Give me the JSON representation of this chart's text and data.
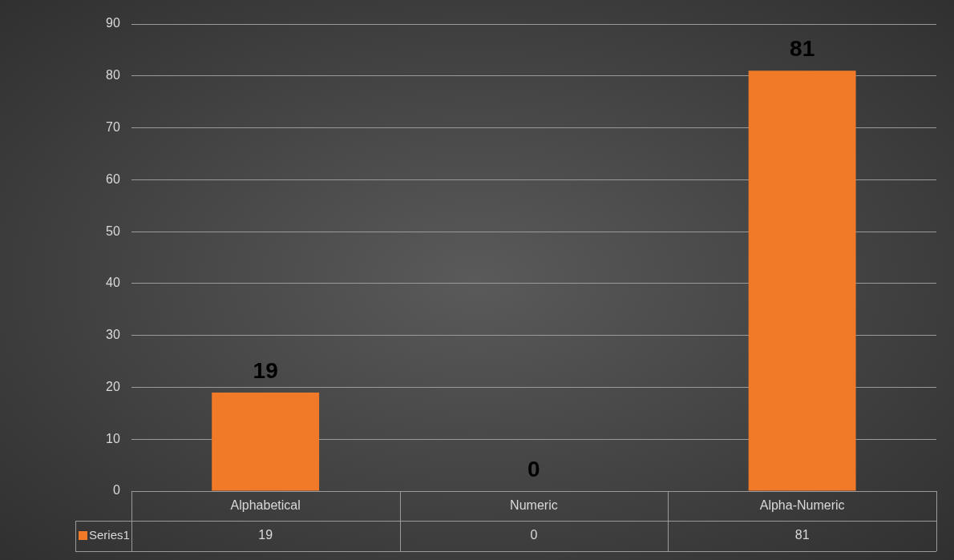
{
  "chart_data": {
    "type": "bar",
    "categories": [
      "Alphabetical",
      "Numeric",
      "Alpha-Numeric"
    ],
    "series": [
      {
        "name": "Series1",
        "color": "#f07a28",
        "values": [
          19,
          0,
          81
        ]
      }
    ],
    "ylim": [
      0,
      90
    ],
    "yticks": [
      0,
      10,
      20,
      30,
      40,
      50,
      60,
      70,
      80,
      90
    ],
    "annotations": [
      "19",
      "0",
      "81"
    ],
    "grid": "y",
    "data_labels": true,
    "legend": "bottom left"
  }
}
